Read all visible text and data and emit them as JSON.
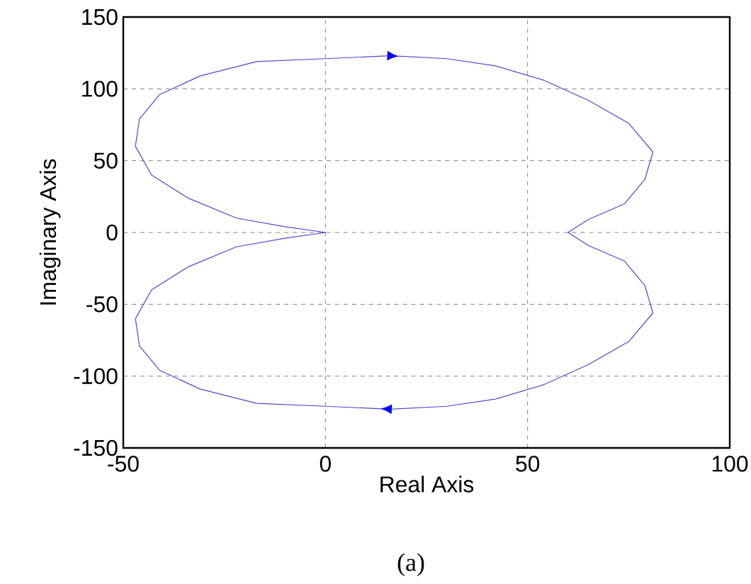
{
  "chart_data": {
    "type": "line",
    "xlabel": "Real  Axis",
    "ylabel": "Imaginary  Axis",
    "annotations": [
      "(a)"
    ],
    "xlim": [
      -50,
      100
    ],
    "xticks": [
      -50,
      0,
      50,
      100
    ],
    "ylim": [
      -150,
      150
    ],
    "yticks": [
      -150,
      -100,
      -50,
      0,
      50,
      100,
      150
    ],
    "grid": true,
    "series": [
      {
        "color": "#4a4acd",
        "x": [
          0,
          -10,
          -22,
          -34,
          -43,
          -47
        ],
        "values": [
          0,
          4,
          10,
          24,
          40,
          60
        ]
      },
      {
        "color": "#4a4acd",
        "x": [
          -47,
          -46,
          -41,
          -31,
          -17,
          0,
          16,
          30,
          42,
          54,
          65,
          75,
          81
        ],
        "values": [
          60,
          79,
          96,
          109,
          119,
          121,
          123,
          121,
          116,
          106,
          92,
          76,
          56
        ]
      },
      {
        "color": "#4a4acd",
        "x": [
          81,
          79,
          74,
          65,
          60
        ],
        "values": [
          56,
          37,
          20,
          9,
          0
        ]
      },
      {
        "color": "#4a4acd",
        "x": [
          60,
          65,
          74,
          79,
          81
        ],
        "values": [
          0,
          -9,
          -20,
          -37,
          -56
        ]
      },
      {
        "color": "#4a4acd",
        "x": [
          81,
          75,
          65,
          54,
          42,
          30,
          16,
          0,
          -17,
          -31,
          -41,
          -46,
          -47
        ],
        "values": [
          -56,
          -76,
          -92,
          -106,
          -116,
          -121,
          -123,
          -121,
          -119,
          -109,
          -96,
          -79,
          -60
        ]
      },
      {
        "color": "#4a4acd",
        "x": [
          -47,
          -43,
          -34,
          -22,
          -10,
          0
        ],
        "values": [
          -60,
          -40,
          -24,
          -10,
          -4,
          0
        ]
      }
    ]
  }
}
